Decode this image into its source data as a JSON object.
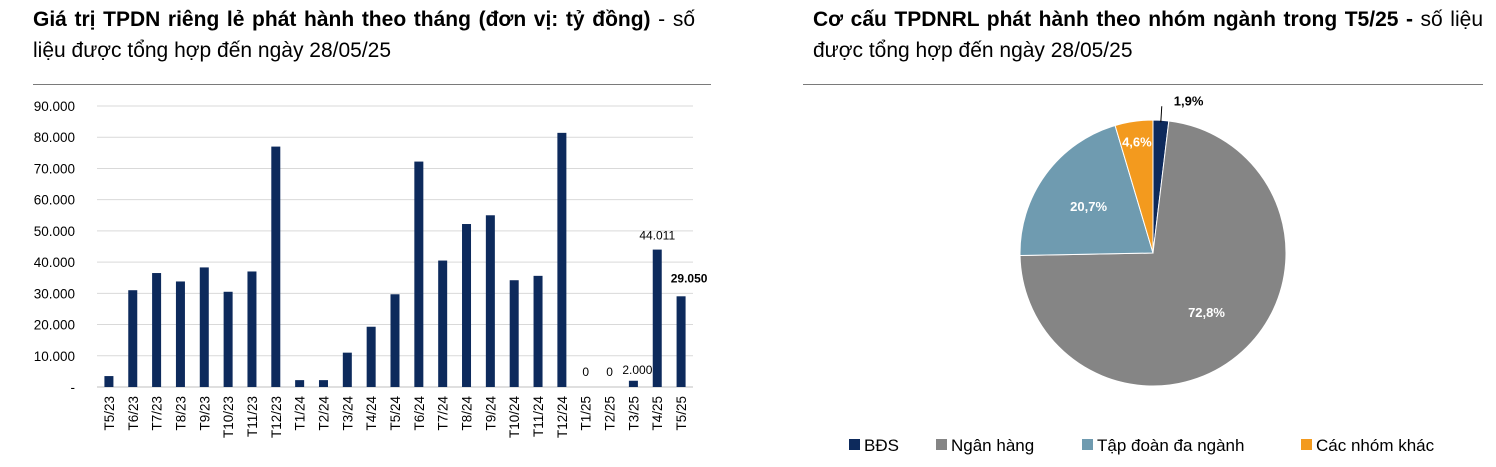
{
  "left_title": {
    "bold": "Giá trị TPDN riêng lẻ phát hành theo tháng (đơn vị: tỷ đồng)",
    "normal": " - số liệu được tổng hợp đến ngày 28/05/25"
  },
  "right_title": {
    "bold": "Cơ cấu TPDNRL phát hành theo nhóm ngành trong T5/25 -",
    "normal": " số liệu được tổng hợp đến ngày 28/05/25"
  },
  "chart_data": [
    {
      "type": "bar",
      "ylim": [
        0,
        90000
      ],
      "y_ticks": [
        "-",
        "10.000",
        "20.000",
        "30.000",
        "40.000",
        "50.000",
        "60.000",
        "70.000",
        "80.000",
        "90.000"
      ],
      "categories": [
        "T5/23",
        "T6/23",
        "T7/23",
        "T8/23",
        "T9/23",
        "T10/23",
        "T11/23",
        "T12/23",
        "T1/24",
        "T2/24",
        "T3/24",
        "T4/24",
        "T5/24",
        "T6/24",
        "T7/24",
        "T8/24",
        "T9/24",
        "T10/24",
        "T11/24",
        "T12/24",
        "T1/25",
        "T2/25",
        "T3/25",
        "T4/25",
        "T5/25"
      ],
      "values": [
        3500,
        31000,
        36500,
        33800,
        38300,
        30500,
        37000,
        77000,
        2200,
        2200,
        11000,
        19300,
        29700,
        72200,
        40500,
        52200,
        55000,
        34200,
        35600,
        81400,
        0,
        0,
        2000,
        44011,
        29050
      ],
      "data_labels": [
        {
          "index": 20,
          "text": "0",
          "bold": false
        },
        {
          "index": 21,
          "text": "0",
          "bold": false
        },
        {
          "index": 22,
          "text": "2.000",
          "bold": false
        },
        {
          "index": 23,
          "text": "44.011",
          "bold": false
        },
        {
          "index": 24,
          "text": "29.050",
          "bold": true
        }
      ],
      "bar_color": "#0d2a5c",
      "grid": true
    },
    {
      "type": "pie",
      "slices": [
        {
          "name": "BĐS",
          "value": 1.9,
          "label": "1,9%",
          "color": "#0d2a5c"
        },
        {
          "name": "Ngân hàng",
          "value": 72.8,
          "label": "72,8%",
          "color": "#858585"
        },
        {
          "name": "Tập đoàn đa ngành",
          "value": 20.7,
          "label": "20,7%",
          "color": "#6f9bb0"
        },
        {
          "name": "Các nhóm khác",
          "value": 4.6,
          "label": "4,6%",
          "color": "#f39a1e"
        }
      ],
      "legend_position": "bottom"
    }
  ]
}
